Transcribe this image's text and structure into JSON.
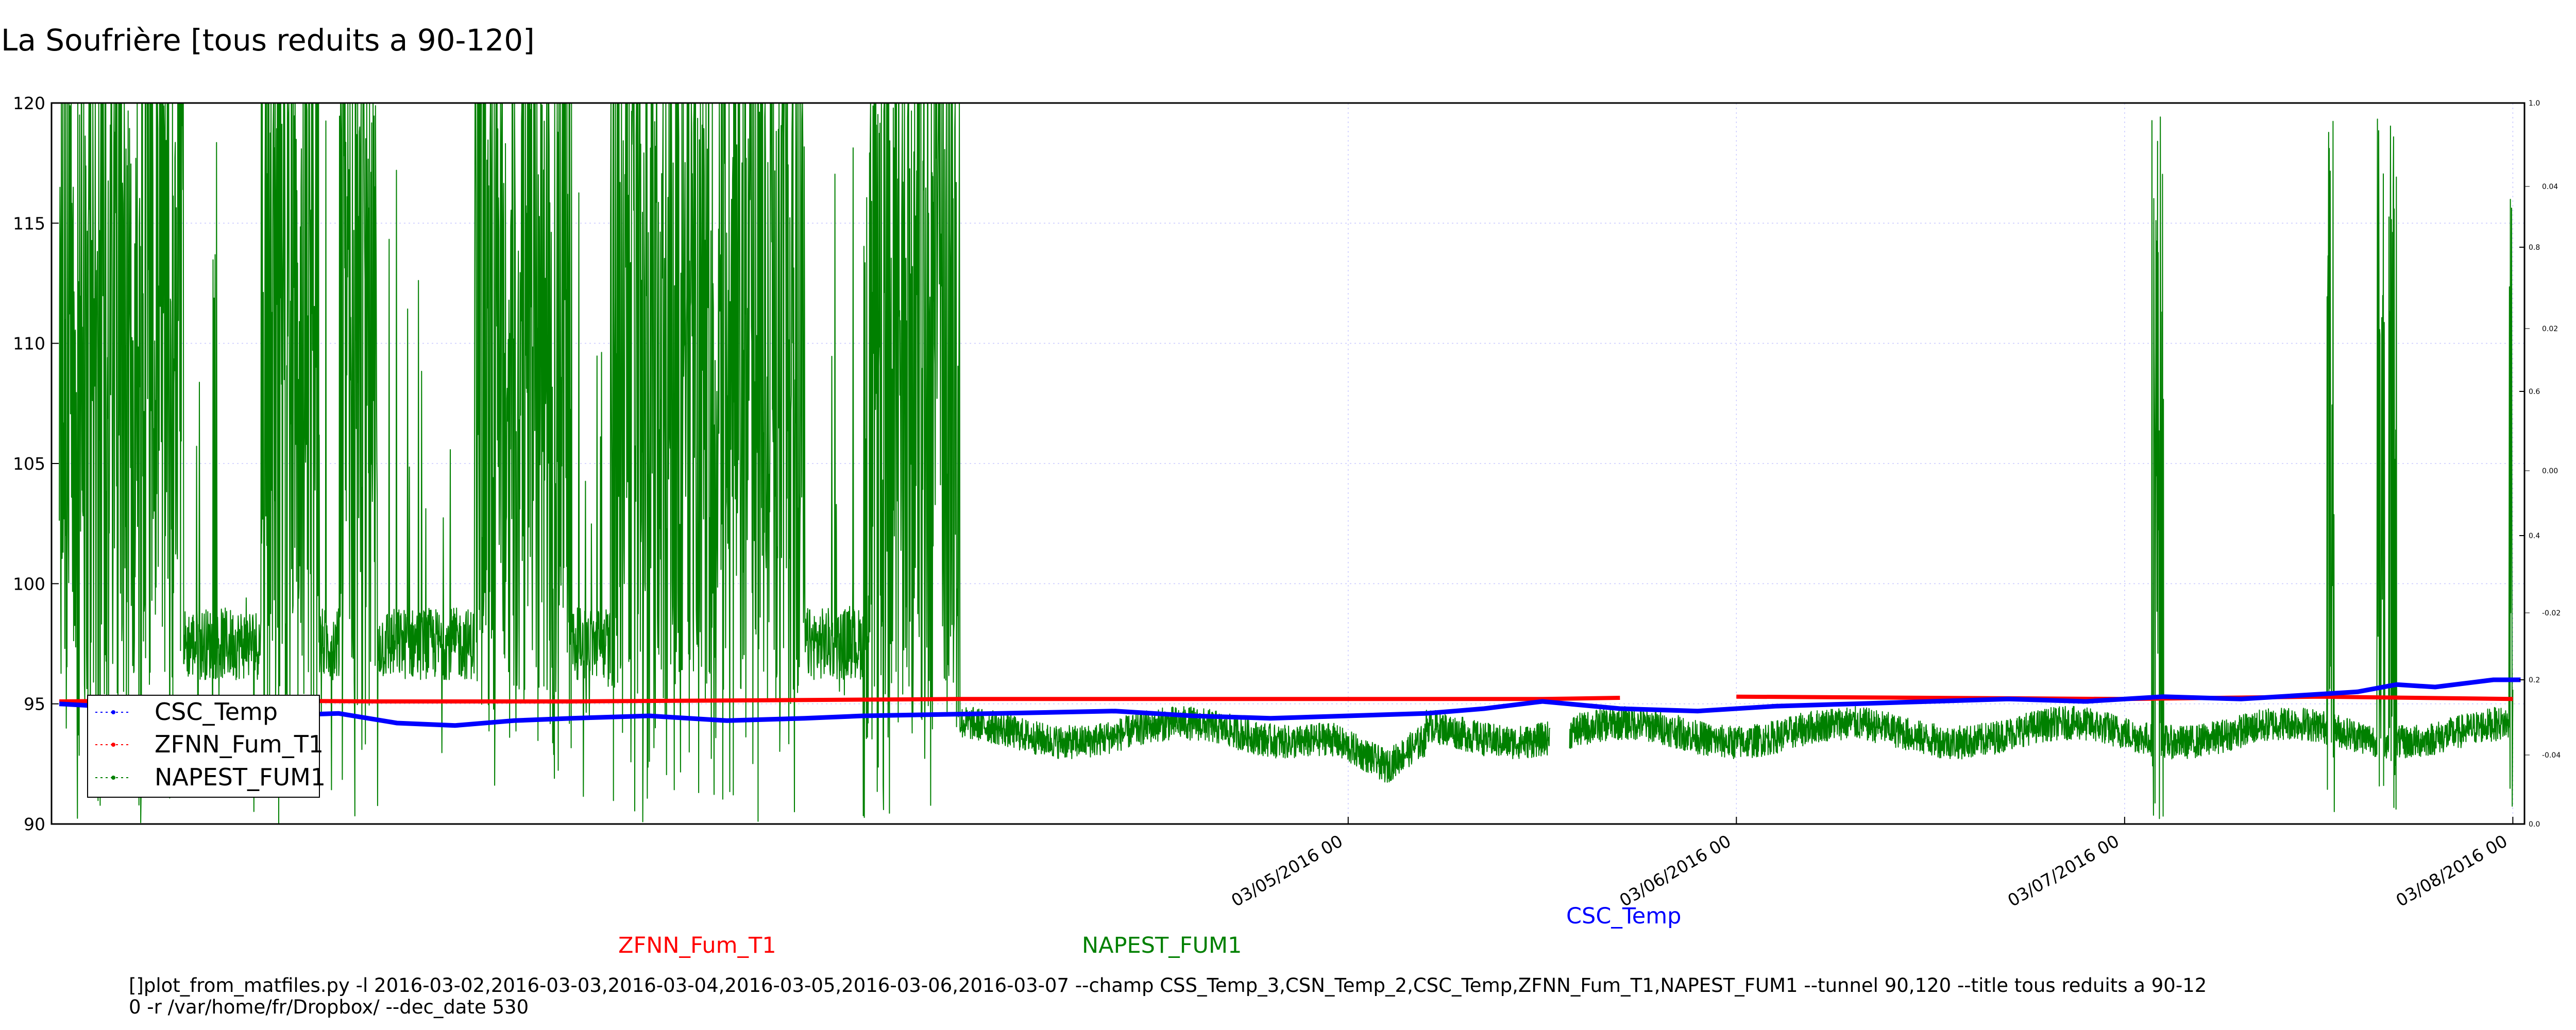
{
  "chart_data": {
    "type": "line",
    "title": "La Soufrière [tous reduits a 90-120]",
    "xlabel": "",
    "ylabel": "",
    "x_ticks": [
      "03/05/2016 00",
      "03/06/2016 00",
      "03/07/2016 00",
      "03/08/2016 00"
    ],
    "x_tick_days": [
      4.0,
      5.0,
      6.0,
      7.0
    ],
    "xlim_days": [
      0.66,
      7.03
    ],
    "ylim": [
      90,
      120
    ],
    "y_ticks": [
      90,
      95,
      100,
      105,
      110,
      115,
      120
    ],
    "right_axis_ticks": [
      "0.0",
      "0.2",
      "0.4",
      "0.6",
      "0.8",
      "1.0"
    ],
    "right_axis_minor_ticks": [
      "-0.04",
      "-0.02",
      "0.00",
      "0.02",
      "0.04"
    ],
    "grid": true,
    "legend_position": "lower-left",
    "series": [
      {
        "name": "CSC_Temp",
        "color": "#0000ff",
        "x_days": [
          0.68,
          0.9,
          1.2,
          1.4,
          1.55,
          1.7,
          1.85,
          2.0,
          2.2,
          2.4,
          2.6,
          2.75,
          3.1,
          3.4,
          3.6,
          3.8,
          4.0,
          4.2,
          4.35,
          4.5,
          4.7,
          4.9,
          5.1,
          5.3,
          5.5,
          5.7,
          5.9,
          6.1,
          6.3,
          6.5,
          6.6,
          6.7,
          6.8,
          6.9,
          6.95,
          7.02
        ],
        "y": [
          95.0,
          94.8,
          94.5,
          94.6,
          94.2,
          94.1,
          94.3,
          94.4,
          94.5,
          94.3,
          94.4,
          94.5,
          94.6,
          94.7,
          94.5,
          94.4,
          94.5,
          94.6,
          94.8,
          95.1,
          94.8,
          94.7,
          94.9,
          95.0,
          95.1,
          95.2,
          95.1,
          95.3,
          95.2,
          95.4,
          95.5,
          95.8,
          95.7,
          95.9,
          96.0,
          96.0
        ]
      },
      {
        "name": "ZFNN_Fum_T1",
        "color": "#ff0000",
        "x_days": [
          0.68,
          1.0,
          1.5,
          2.0,
          2.5,
          3.0,
          3.5,
          4.0,
          4.5,
          4.7,
          4.76,
          5.0,
          5.5,
          6.0,
          6.5,
          7.0
        ],
        "y": [
          95.1,
          95.15,
          95.1,
          95.1,
          95.15,
          95.2,
          95.2,
          95.2,
          95.2,
          95.25,
          null,
          95.3,
          95.25,
          95.2,
          95.3,
          95.2
        ]
      },
      {
        "name": "NAPEST_FUM1",
        "color": "#008000"
      }
    ]
  },
  "legend": {
    "items": [
      {
        "label": "CSC_Temp",
        "color": "#0000ff"
      },
      {
        "label": "ZFNN_Fum_T1",
        "color": "#ff0000"
      },
      {
        "label": "NAPEST_FUM1",
        "color": "#008000"
      }
    ]
  },
  "footer": {
    "zfnn_label": "ZFNN_Fum_T1",
    "napest_label": "NAPEST_FUM1",
    "csc_label": "CSC_Temp",
    "command_line_1": "[]plot_from_matfiles.py -l 2016-03-02,2016-03-03,2016-03-04,2016-03-05,2016-03-06,2016-03-07 --champ CSS_Temp_3,CSN_Temp_2,CSC_Temp,ZFNN_Fum_T1,NAPEST_FUM1 --tunnel 90,120 --title tous reduits a 90-12",
    "command_line_2": "0 -r /var/home/fr/Dropbox/ --dec_date 530"
  }
}
